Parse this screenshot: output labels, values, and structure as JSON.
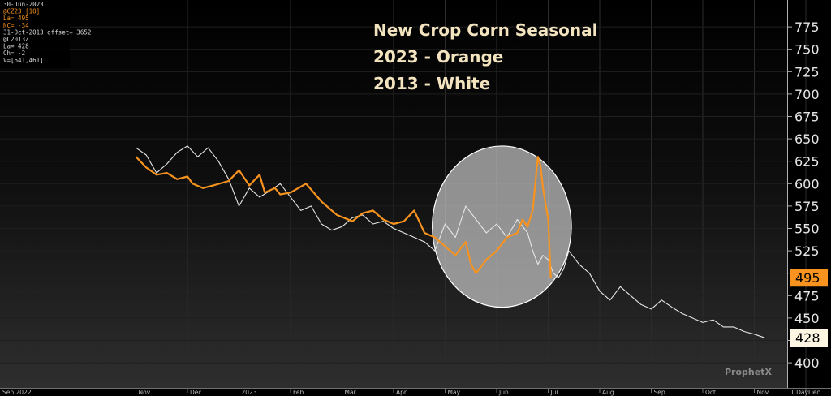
{
  "chart_data": {
    "type": "line",
    "title_lines": [
      "New Crop Corn Seasonal",
      "2023 - Orange",
      "2013 - White"
    ],
    "ylim": [
      372,
      805
    ],
    "y_ticks": [
      400,
      425,
      450,
      475,
      500,
      525,
      550,
      575,
      600,
      625,
      650,
      675,
      700,
      725,
      750,
      775
    ],
    "x_ticks": [
      "Sep 2022",
      "Nov",
      "Dec",
      "2023",
      "Feb",
      "Mar",
      "Apr",
      "May",
      "Jun",
      "Jul",
      "Aug",
      "Sep",
      "Oct",
      "Nov",
      "Dec"
    ],
    "x_tick_pos": [
      0,
      2,
      3,
      4,
      5,
      6,
      7,
      8,
      9,
      10,
      11,
      12,
      13,
      14,
      15
    ],
    "x_unit_label": "1 Day",
    "highlight_ellipse": {
      "center": [
        9.1,
        552
      ],
      "radius_x": 1.35,
      "radius_y": 90
    },
    "series": [
      {
        "name": "@CZ23 [10]",
        "color": "#f7931e",
        "x": [
          2,
          2.2,
          2.4,
          2.6,
          2.8,
          3,
          3.1,
          3.3,
          3.5,
          3.8,
          4,
          4.2,
          4.4,
          4.5,
          4.7,
          4.8,
          5,
          5.3,
          5.6,
          5.9,
          6.2,
          6.4,
          6.6,
          6.8,
          7,
          7.2,
          7.4,
          7.6,
          7.8,
          8,
          8.2,
          8.4,
          8.5,
          8.6,
          8.8,
          9,
          9.2,
          9.4,
          9.5,
          9.6,
          9.7,
          9.75,
          9.8,
          9.85,
          9.9,
          10,
          10.05
        ],
        "y": [
          630,
          618,
          610,
          612,
          605,
          608,
          600,
          595,
          598,
          603,
          615,
          598,
          610,
          590,
          595,
          588,
          590,
          600,
          580,
          565,
          558,
          567,
          570,
          560,
          555,
          558,
          570,
          545,
          540,
          530,
          520,
          535,
          510,
          500,
          515,
          525,
          540,
          545,
          560,
          552,
          570,
          600,
          630,
          620,
          595,
          560,
          495
        ]
      },
      {
        "name": "@C2013Z",
        "color": "#e6e6e6",
        "x": [
          2,
          2.2,
          2.4,
          2.6,
          2.8,
          3,
          3.2,
          3.4,
          3.6,
          3.8,
          4,
          4.2,
          4.4,
          4.6,
          4.8,
          5,
          5.2,
          5.4,
          5.6,
          5.8,
          6,
          6.2,
          6.4,
          6.6,
          6.8,
          7,
          7.2,
          7.4,
          7.6,
          7.8,
          8,
          8.2,
          8.4,
          8.6,
          8.8,
          9,
          9.2,
          9.4,
          9.6,
          9.7,
          9.8,
          9.9,
          10,
          10.1,
          10.2,
          10.3,
          10.4,
          10.6,
          10.8,
          11,
          11.2,
          11.4,
          11.6,
          11.8,
          12,
          12.2,
          12.4,
          12.6,
          12.8,
          13,
          13.2,
          13.4,
          13.6,
          13.8,
          14,
          14.2
        ],
        "y": [
          640,
          632,
          612,
          622,
          635,
          642,
          630,
          640,
          625,
          605,
          575,
          595,
          585,
          592,
          600,
          585,
          570,
          575,
          555,
          548,
          552,
          562,
          565,
          555,
          558,
          550,
          545,
          540,
          535,
          525,
          555,
          540,
          575,
          560,
          545,
          555,
          540,
          560,
          545,
          525,
          510,
          520,
          515,
          500,
          495,
          505,
          525,
          510,
          500,
          480,
          470,
          485,
          475,
          465,
          460,
          470,
          462,
          455,
          450,
          445,
          448,
          440,
          440,
          435,
          432,
          428
        ]
      }
    ]
  },
  "legend": {
    "lines": [
      "30-Jun-2023",
      "@CZ23 [10]",
      "La= 495",
      "NC= -34",
      "31-Oct-2013 offset= 3652",
      "@C2013Z",
      "La= 428",
      "Ch= -2",
      "V=[641,461]"
    ],
    "colors": [
      "#d8d8d8",
      "#f7931e",
      "#f7931e",
      "#f7931e",
      "#d8d8d8",
      "#d8d8d8",
      "#d8d8d8",
      "#d8d8d8",
      "#d8d8d8"
    ]
  },
  "badges": [
    {
      "text": "495",
      "value": 495,
      "bg": "#f7931e",
      "fg": "#000000"
    },
    {
      "text": "428",
      "value": 428,
      "bg": "#fdf6e3",
      "fg": "#000000"
    }
  ],
  "watermark": {
    "brand": "ProphetX"
  }
}
